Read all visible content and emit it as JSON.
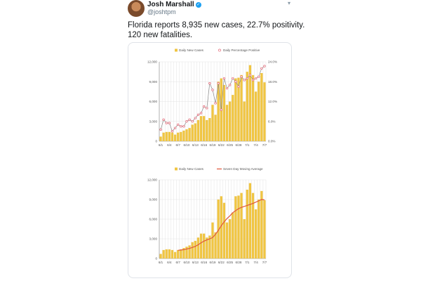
{
  "tweet": {
    "name": "Josh Marshall",
    "verified_icon": "verified-badge-icon",
    "handle": "@joshtpm",
    "caret_icon": "chevron-down-icon",
    "text_lines": [
      "Florida reports 8,935 new cases, 22.7% positivity.",
      "120 new fatalities."
    ]
  },
  "colors": {
    "bar": "#f0c542",
    "pos_line": "#8a8a8a",
    "pos_marker": "#e05060",
    "avg_line": "#e0553a",
    "grid": "#e3e3e3"
  },
  "chart_data": [
    {
      "type": "bar",
      "x_labels": [
        "6/1",
        "6/4",
        "6/7",
        "6/10",
        "6/13",
        "6/16",
        "6/19",
        "6/22",
        "6/25",
        "6/28",
        "7/1",
        "7/4",
        "7/7"
      ],
      "series": [
        {
          "name": "Daily New Cases",
          "type": "bar",
          "values": [
            700,
            1300,
            1400,
            1400,
            1300,
            1000,
            1300,
            1400,
            1600,
            1800,
            2000,
            2500,
            2700,
            3200,
            3800,
            3800,
            3200,
            3500,
            5500,
            4000,
            9000,
            9500,
            8500,
            5500,
            6000,
            7000,
            9500,
            9600,
            10000,
            6000,
            10500,
            11500,
            10000,
            7500,
            9000,
            10300,
            8900
          ]
        },
        {
          "name": "Daily Percentage Positive",
          "type": "line",
          "axis": "right",
          "values": [
            3.5,
            6.5,
            5.5,
            5.5,
            3.0,
            4.0,
            5.0,
            4.5,
            4.5,
            6.0,
            6.5,
            6.0,
            7.0,
            8.0,
            8.5,
            10.5,
            10.0,
            17.5,
            15.5,
            11.5,
            17.5,
            9.5,
            19.0,
            16.0,
            17.0,
            19.0,
            18.0,
            16.5,
            19.5,
            18.5,
            19.0,
            20.0,
            18.5,
            19.0,
            19.5,
            22.0,
            22.7
          ]
        }
      ],
      "y_left": {
        "ticks": [
          "0",
          "3,000",
          "6,000",
          "9,000",
          "12,000"
        ],
        "range": [
          0,
          12000
        ]
      },
      "y_right": {
        "ticks": [
          "0.0%",
          "6.0%",
          "12.0%",
          "18.0%",
          "24.0%"
        ],
        "range": [
          0,
          24
        ]
      }
    },
    {
      "type": "bar",
      "x_labels": [
        "6/1",
        "6/4",
        "6/7",
        "6/10",
        "6/13",
        "6/16",
        "6/19",
        "6/22",
        "6/25",
        "6/28",
        "7/1",
        "7/4",
        "7/7"
      ],
      "series": [
        {
          "name": "Daily New Cases",
          "type": "bar",
          "values": [
            700,
            1300,
            1400,
            1400,
            1300,
            1000,
            1300,
            1400,
            1600,
            1800,
            2000,
            2500,
            2700,
            3200,
            3800,
            3800,
            3200,
            3500,
            5500,
            4000,
            9000,
            9500,
            8500,
            5500,
            6000,
            7000,
            9500,
            9600,
            10000,
            6000,
            10500,
            11500,
            10000,
            7500,
            9000,
            10300,
            8900
          ]
        },
        {
          "name": "Seven Day Moving Average",
          "type": "line",
          "start_index": 6,
          "values": [
            1250,
            1300,
            1350,
            1450,
            1550,
            1700,
            1850,
            2100,
            2400,
            2650,
            2850,
            3000,
            3200,
            3700,
            4300,
            5000,
            5600,
            6100,
            6500,
            7000,
            7300,
            7600,
            7800,
            7950,
            8100,
            8250,
            8400,
            8600,
            8800,
            9000,
            8950
          ]
        }
      ],
      "y_left": {
        "ticks": [
          "0",
          "3,000",
          "6,000",
          "9,000",
          "12,000"
        ],
        "range": [
          0,
          12000
        ]
      }
    }
  ]
}
